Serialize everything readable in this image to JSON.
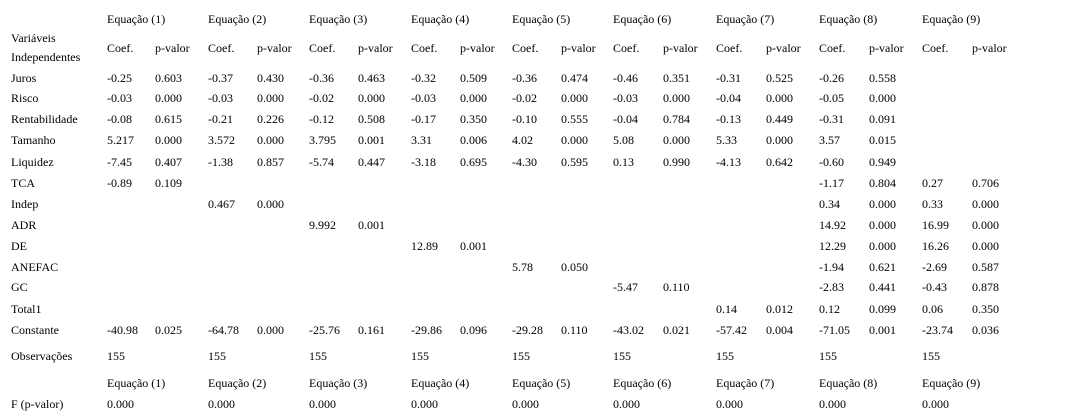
{
  "top_equation_headers": [
    "Equação (1)",
    "Equação (2)",
    "Equação (3)",
    "Equação (4)",
    "Equação (5)",
    "Equação (6)",
    "Equação (7)",
    "Equação (8)",
    "Equação (9)"
  ],
  "variables_header_line1": "Variáveis",
  "variables_header_line2": "Independentes",
  "coef_label": "Coef.",
  "pvalue_label": "p-valor",
  "rows": [
    {
      "label": "Juros",
      "cells": [
        "-0.25",
        "0.603",
        "-0.37",
        "0.430",
        "-0.36",
        "0.463",
        "-0.32",
        "0.509",
        "-0.36",
        "0.474",
        "-0.46",
        "0.351",
        "-0.31",
        "0.525",
        "-0.26",
        "0.558",
        "",
        ""
      ]
    },
    {
      "label": "Risco",
      "cells": [
        "-0.03",
        "0.000",
        "-0.03",
        "0.000",
        "-0.02",
        "0.000",
        "-0.03",
        "0.000",
        "-0.02",
        "0.000",
        "-0.03",
        "0.000",
        "-0.04",
        "0.000",
        "-0.05",
        "0.000",
        "",
        ""
      ]
    },
    {
      "label": "Rentabilidade",
      "cells": [
        "-0.08",
        "0.615",
        "-0.21",
        "0.226",
        "-0.12",
        "0.508",
        "-0.17",
        "0.350",
        "-0.10",
        "0.555",
        "-0.04",
        "0.784",
        "-0.13",
        "0.449",
        "-0.31",
        "0.091",
        "",
        ""
      ]
    },
    {
      "label": "Tamanho",
      "cells": [
        "5.217",
        "0.000",
        "3.572",
        "0.000",
        "3.795",
        "0.001",
        "3.31",
        "0.006",
        "4.02",
        "0.000",
        "5.08",
        "0.000",
        "5.33",
        "0.000",
        "3.57",
        "0.015",
        "",
        ""
      ]
    },
    {
      "label": "Liquidez",
      "cells": [
        "-7.45",
        "0.407",
        "-1.38",
        "0.857",
        "-5.74",
        "0.447",
        "-3.18",
        "0.695",
        "-4.30",
        "0.595",
        "0.13",
        "0.990",
        "-4.13",
        "0.642",
        "-0.60",
        "0.949",
        "",
        ""
      ]
    },
    {
      "label": "TCA",
      "cells": [
        "-0.89",
        "0.109",
        "",
        "",
        "",
        "",
        "",
        "",
        "",
        "",
        "",
        "",
        "",
        "",
        "-1.17",
        "0.804",
        "0.27",
        "0.706"
      ]
    },
    {
      "label": "Indep",
      "cells": [
        "",
        "",
        "0.467",
        "0.000",
        "",
        "",
        "",
        "",
        "",
        "",
        "",
        "",
        "",
        "",
        "0.34",
        "0.000",
        "0.33",
        "0.000"
      ]
    },
    {
      "label": "ADR",
      "cells": [
        "",
        "",
        "",
        "",
        "9.992",
        "0.001",
        "",
        "",
        "",
        "",
        "",
        "",
        "",
        "",
        "14.92",
        "0.000",
        "16.99",
        "0.000"
      ]
    },
    {
      "label": "DE",
      "cells": [
        "",
        "",
        "",
        "",
        "",
        "",
        "12.89",
        "0.001",
        "",
        "",
        "",
        "",
        "",
        "",
        "12.29",
        "0.000",
        "16.26",
        "0.000"
      ]
    },
    {
      "label": "ANEFAC",
      "cells": [
        "",
        "",
        "",
        "",
        "",
        "",
        "",
        "",
        "5.78",
        "0.050",
        "",
        "",
        "",
        "",
        "-1.94",
        "0.621",
        "-2.69",
        "0.587"
      ]
    },
    {
      "label": "GC",
      "cells": [
        "",
        "",
        "",
        "",
        "",
        "",
        "",
        "",
        "",
        "",
        "-5.47",
        "0.110",
        "",
        "",
        "-2.83",
        "0.441",
        "-0.43",
        "0.878"
      ]
    },
    {
      "label": "Total1",
      "cells": [
        "",
        "",
        "",
        "",
        "",
        "",
        "",
        "",
        "",
        "",
        "",
        "",
        "0.14",
        "0.012",
        "0.12",
        "0.099",
        "0.06",
        "0.350"
      ]
    },
    {
      "label": "Constante",
      "cells": [
        "-40.98",
        "0.025",
        "-64.78",
        "0.000",
        "-25.76",
        "0.161",
        "-29.86",
        "0.096",
        "-29.28",
        "0.110",
        "-43.02",
        "0.021",
        "-57.42",
        "0.004",
        "-71.05",
        "0.001",
        "-23.74",
        "0.036"
      ]
    }
  ],
  "observations": {
    "label": "Observações",
    "values": [
      "155",
      "155",
      "155",
      "155",
      "155",
      "155",
      "155",
      "155",
      "155"
    ]
  },
  "bottom_equation_headers": [
    "Equação (1)",
    "Equação (2)",
    "Equação (3)",
    "Equação (4)",
    "Equação (5)",
    "Equação (6)",
    "Equação (7)",
    "Equação (8)",
    "Equação (9)"
  ],
  "f_stat": {
    "label": "F (p-valor)",
    "values": [
      "0.000",
      "0.000",
      "0.000",
      "0.000",
      "0.000",
      "0.000",
      "0.000",
      "0.000",
      "0.000"
    ]
  }
}
